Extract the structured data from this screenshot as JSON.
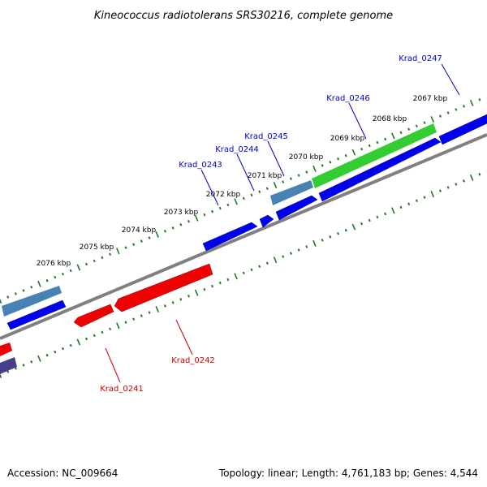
{
  "title": "Kineococcus radiotolerans SRS30216, complete genome",
  "footer": {
    "accession": "Accession: NC_009664",
    "summary": "Topology: linear; Length: 4,761,183 bp; Genes: 4,544"
  },
  "colors": {
    "forward_gene": "#0000ee",
    "reverse_gene": "#ee0000",
    "rna_gene": "#4682b4",
    "highlight_gene": "#33cc33",
    "reverse_other": "#483d8b",
    "backbone": "#808080",
    "ruler": "#1e7a1e",
    "label_forward": "#0000cc",
    "label_reverse": "#cc0000"
  },
  "ruler_ticks": [
    "2067 kbp",
    "2068 kbp",
    "2069 kbp",
    "2070 kbp",
    "2071 kbp",
    "2072 kbp",
    "2073 kbp",
    "2074 kbp",
    "2075 kbp",
    "2076 kbp"
  ],
  "gene_labels": [
    {
      "name": "Krad_0247",
      "strand": "forward"
    },
    {
      "name": "Krad_0246",
      "strand": "forward"
    },
    {
      "name": "Krad_0245",
      "strand": "forward"
    },
    {
      "name": "Krad_0244",
      "strand": "forward"
    },
    {
      "name": "Krad_0243",
      "strand": "forward"
    },
    {
      "name": "Krad_0242",
      "strand": "reverse"
    },
    {
      "name": "Krad_0241",
      "strand": "reverse"
    }
  ]
}
